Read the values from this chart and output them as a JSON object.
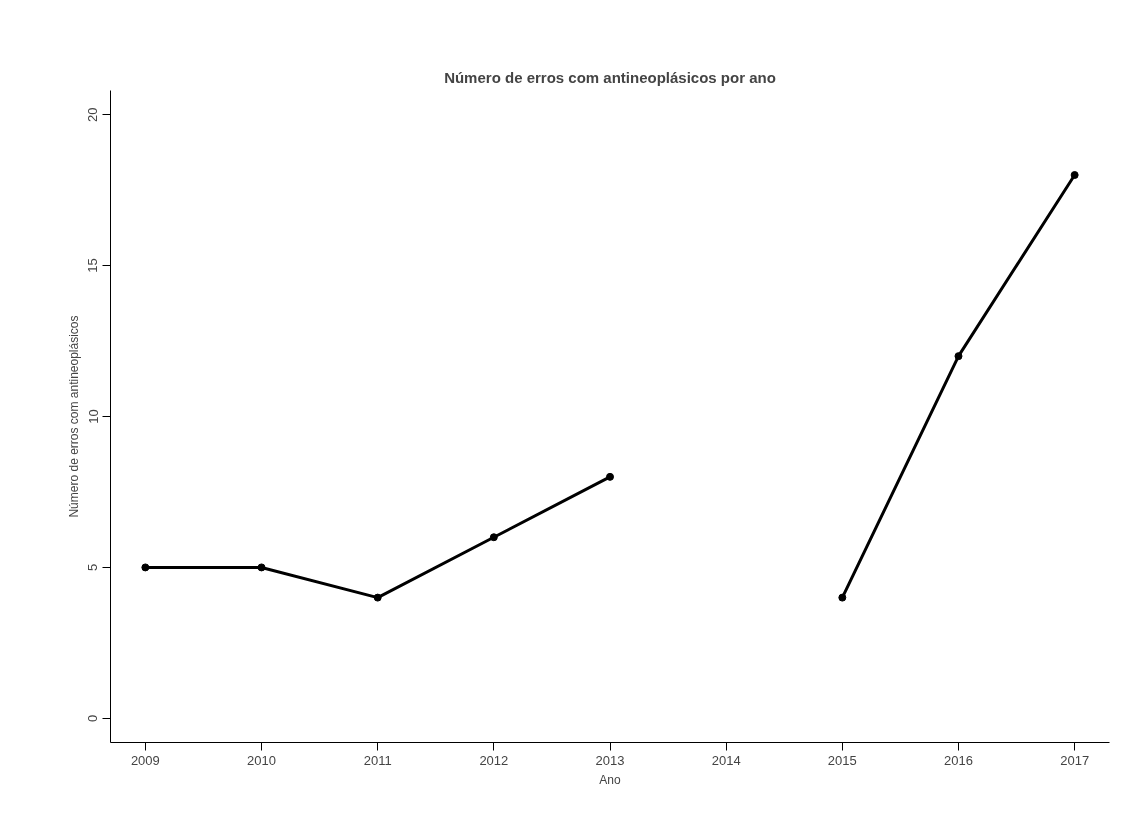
{
  "chart_data": {
    "type": "line",
    "title": "Número de erros com antineoplásicos por ano",
    "xlabel": "Ano",
    "ylabel": "Número de erros com antineoplásicos",
    "x": [
      2009,
      2010,
      2011,
      2012,
      2013,
      2014,
      2015,
      2016,
      2017
    ],
    "series": [
      {
        "color": "#000000",
        "values": [
          5,
          5,
          4,
          6,
          8,
          null,
          4,
          12,
          18
        ]
      }
    ],
    "xlim": [
      2008.7,
      2017.3
    ],
    "ylim": [
      -0.8,
      20.8
    ],
    "xticks": [
      2009,
      2010,
      2011,
      2012,
      2013,
      2014,
      2015,
      2016,
      2017
    ],
    "yticks": [
      0,
      5,
      10,
      15,
      20
    ],
    "grid": false,
    "marker": "circle",
    "line_style": "solid"
  }
}
